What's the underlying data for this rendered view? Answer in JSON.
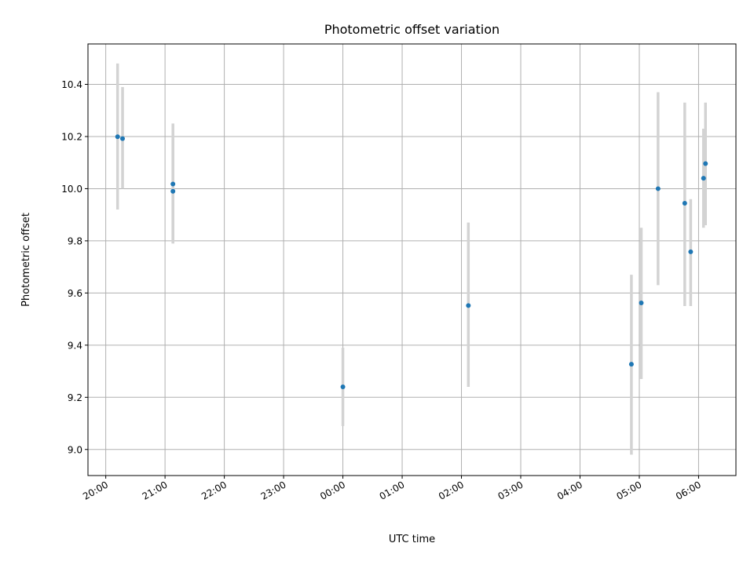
{
  "chart_data": {
    "type": "scatter",
    "title": "Photometric offset variation",
    "xlabel": "UTC time",
    "ylabel": "Photometric offset",
    "x_tick_labels": [
      "20:00",
      "21:00",
      "22:00",
      "23:00",
      "00:00",
      "01:00",
      "02:00",
      "03:00",
      "04:00",
      "05:00",
      "06:00"
    ],
    "x_ticks_hours": [
      0,
      1,
      2,
      3,
      4,
      5,
      6,
      7,
      8,
      9,
      10
    ],
    "x_axis_origin": "20:00",
    "xlim_hours": [
      -0.3,
      10.63
    ],
    "y_ticks": [
      9.0,
      9.2,
      9.4,
      9.6,
      9.8,
      10.0,
      10.2,
      10.4
    ],
    "y_tick_labels": [
      "9.0",
      "9.2",
      "9.4",
      "9.6",
      "9.8",
      "10.0",
      "10.2",
      "10.4"
    ],
    "ylim": [
      8.9,
      10.555
    ],
    "grid": true,
    "point_color": "#1f77b4",
    "errorbar_color": "#d3d3d3",
    "points": [
      {
        "time": "20:12",
        "value": 10.199,
        "low": 9.92,
        "high": 10.48
      },
      {
        "time": "20:17",
        "value": 10.192,
        "low": 10.0,
        "high": 10.39
      },
      {
        "time": "21:08",
        "value": 10.018,
        "low": 9.79,
        "high": 10.25
      },
      {
        "time": "21:08",
        "value": 9.99,
        "low": 9.79,
        "high": 10.19
      },
      {
        "time": "00:00",
        "value": 9.24,
        "low": 9.09,
        "high": 9.39
      },
      {
        "time": "02:07",
        "value": 9.552,
        "low": 9.24,
        "high": 9.87
      },
      {
        "time": "04:52",
        "value": 9.327,
        "low": 8.98,
        "high": 9.67
      },
      {
        "time": "05:02",
        "value": 9.562,
        "low": 9.27,
        "high": 9.85
      },
      {
        "time": "05:19",
        "value": 10.0,
        "low": 9.63,
        "high": 10.37
      },
      {
        "time": "05:46",
        "value": 9.944,
        "low": 9.55,
        "high": 10.33
      },
      {
        "time": "05:52",
        "value": 9.758,
        "low": 9.55,
        "high": 9.96
      },
      {
        "time": "06:05",
        "value": 10.04,
        "low": 9.85,
        "high": 10.23
      },
      {
        "time": "06:07",
        "value": 10.096,
        "low": 9.86,
        "high": 10.33
      }
    ]
  }
}
